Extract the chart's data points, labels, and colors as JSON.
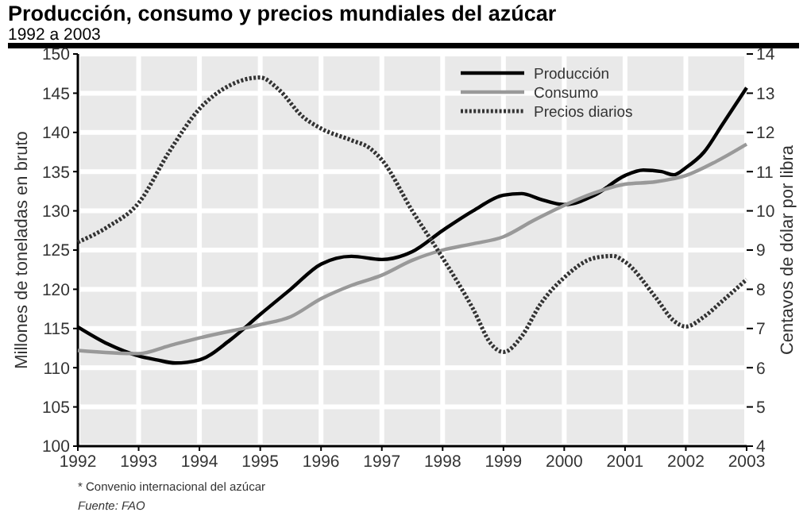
{
  "chart_data": {
    "type": "line",
    "title": "Producción, consumo y precios mundiales del azúcar",
    "subtitle": "1992 a 2003",
    "ylabel": "Millones de toneladas en bruto",
    "y2label": "Centavos de dólar por libra",
    "xlim": [
      1992,
      2003
    ],
    "xticks": [
      1992,
      1993,
      1994,
      1995,
      1996,
      1997,
      1998,
      1999,
      2000,
      2001,
      2002,
      2003
    ],
    "ylim": [
      100,
      150
    ],
    "yticks": [
      100,
      105,
      110,
      115,
      120,
      125,
      130,
      135,
      140,
      145,
      150
    ],
    "y2lim": [
      4,
      14
    ],
    "y2ticks": [
      4,
      5,
      6,
      7,
      8,
      9,
      10,
      11,
      12,
      13,
      14
    ],
    "grid": true,
    "legend": "top right",
    "series": [
      {
        "name": "Producción",
        "color": "#000000",
        "line_style": "solid",
        "x": [
          1992,
          1992.5,
          1993,
          1993.3,
          1993.6,
          1994,
          1994.5,
          1995,
          1995.5,
          1996,
          1996.5,
          1997,
          1997.5,
          1998,
          1998.5,
          1999,
          1999.3,
          1999.6,
          2000,
          2000.5,
          2001,
          2001.3,
          2001.6,
          2001.8,
          2002,
          2002.3,
          2002.6,
          2003
        ],
        "values": [
          115.2,
          113,
          111.5,
          111,
          110.6,
          111,
          113.5,
          116.8,
          120,
          123.2,
          124.2,
          123.8,
          124.8,
          127.5,
          130,
          132,
          132.2,
          131.5,
          130.8,
          132,
          134.5,
          135.2,
          135,
          134.6,
          135.5,
          137.5,
          141,
          145.7
        ]
      },
      {
        "name": "Consumo",
        "color": "#999999",
        "line_style": "solid",
        "x": [
          1992,
          1993,
          1993.5,
          1994,
          1995,
          1995.5,
          1996,
          1996.5,
          1997,
          1997.5,
          1998,
          1998.5,
          1999,
          1999.5,
          2000,
          2000.5,
          2001,
          2001.5,
          2002,
          2002.5,
          2003
        ],
        "values": [
          112.2,
          111.8,
          112.8,
          113.8,
          115.5,
          116.5,
          118.8,
          120.5,
          121.8,
          123.7,
          125,
          125.8,
          126.7,
          128.8,
          130.7,
          132.3,
          133.4,
          133.7,
          134.5,
          136.3,
          138.5
        ]
      },
      {
        "name": "Precios diarios",
        "color": "#333333",
        "line_style": "dotted",
        "axis": "y2",
        "x": [
          1992,
          1992.5,
          1993,
          1993.5,
          1994,
          1994.5,
          1995,
          1995.3,
          1995.7,
          1996,
          1996.5,
          1996.8,
          1997,
          1997.5,
          1998,
          1998.5,
          1998.8,
          1999,
          1999.3,
          1999.6,
          2000,
          2000.5,
          2000.8,
          2001,
          2001.5,
          2001.8,
          2002,
          2002.3,
          2002.6,
          2003
        ],
        "values": [
          9.2,
          9.6,
          10.2,
          11.5,
          12.6,
          13.2,
          13.4,
          13.1,
          12.4,
          12.1,
          11.8,
          11.6,
          11.3,
          10,
          8.8,
          7.5,
          6.6,
          6.4,
          6.8,
          7.6,
          8.3,
          8.8,
          8.85,
          8.7,
          7.8,
          7.2,
          7.05,
          7.3,
          7.7,
          8.25
        ]
      }
    ],
    "annotations": [
      "* Convenio internacional del azúcar",
      "Fuente: FAO"
    ]
  }
}
